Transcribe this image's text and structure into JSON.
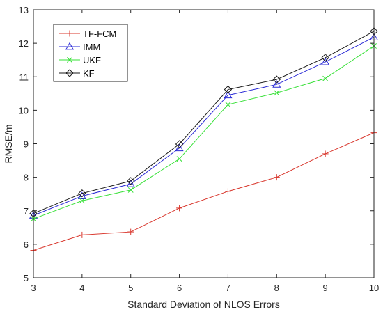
{
  "chart_data": {
    "type": "line",
    "xlabel": "Standard Deviation of NLOS Errors",
    "ylabel": "RMSE/m",
    "x": [
      3,
      4,
      5,
      6,
      7,
      8,
      9,
      10
    ],
    "xlim": [
      3,
      10
    ],
    "ylim": [
      5,
      13
    ],
    "xticks": [
      "3",
      "4",
      "5",
      "6",
      "7",
      "8",
      "9",
      "10"
    ],
    "yticks": [
      "5",
      "6",
      "7",
      "8",
      "9",
      "10",
      "11",
      "12",
      "13"
    ],
    "grid": false,
    "legend_position": "top-left",
    "series": [
      {
        "name": "TF-FCM",
        "color": "#d9382e",
        "marker": "plus",
        "values": [
          5.82,
          6.28,
          6.37,
          7.08,
          7.58,
          8.0,
          8.7,
          9.33
        ]
      },
      {
        "name": "IMM",
        "color": "#2b2bd6",
        "marker": "triangle",
        "values": [
          6.86,
          7.44,
          7.8,
          8.87,
          10.45,
          10.77,
          11.44,
          12.18
        ]
      },
      {
        "name": "UKF",
        "color": "#35e035",
        "marker": "x",
        "values": [
          6.76,
          7.3,
          7.62,
          8.55,
          10.17,
          10.52,
          10.95,
          11.92
        ]
      },
      {
        "name": "KF",
        "color": "#1a1a1a",
        "marker": "diamond",
        "values": [
          6.92,
          7.52,
          7.89,
          8.99,
          10.62,
          10.92,
          11.57,
          12.36
        ]
      }
    ]
  }
}
